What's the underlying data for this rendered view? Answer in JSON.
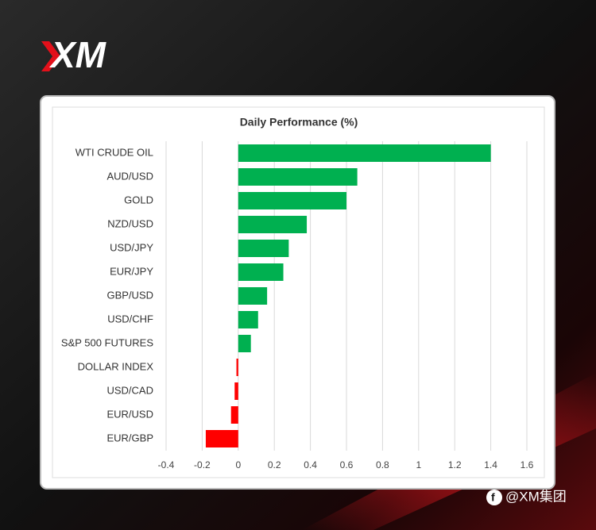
{
  "logo": "XM",
  "footer": "@XM集团",
  "chart_data": {
    "type": "bar",
    "orientation": "horizontal",
    "title": "Daily Performance (%)",
    "categories": [
      "WTI CRUDE OIL",
      "AUD/USD",
      "GOLD",
      "NZD/USD",
      "USD/JPY",
      "EUR/JPY",
      "GBP/USD",
      "USD/CHF",
      "S&P 500 FUTURES",
      "DOLLAR INDEX",
      "USD/CAD",
      "EUR/USD",
      "EUR/GBP"
    ],
    "values": [
      1.4,
      0.66,
      0.6,
      0.38,
      0.28,
      0.25,
      0.16,
      0.11,
      0.07,
      -0.01,
      -0.02,
      -0.04,
      -0.18
    ],
    "colors": [
      "#00b050",
      "#00b050",
      "#00b050",
      "#00b050",
      "#00b050",
      "#00b050",
      "#00b050",
      "#00b050",
      "#00b050",
      "#ff0000",
      "#ff0000",
      "#ff0000",
      "#ff0000"
    ],
    "xlim": [
      -0.4,
      1.6
    ],
    "xticks": [
      -0.4,
      -0.2,
      0,
      0.2,
      0.4,
      0.6,
      0.8,
      1,
      1.2,
      1.4,
      1.6
    ],
    "grid": true
  }
}
